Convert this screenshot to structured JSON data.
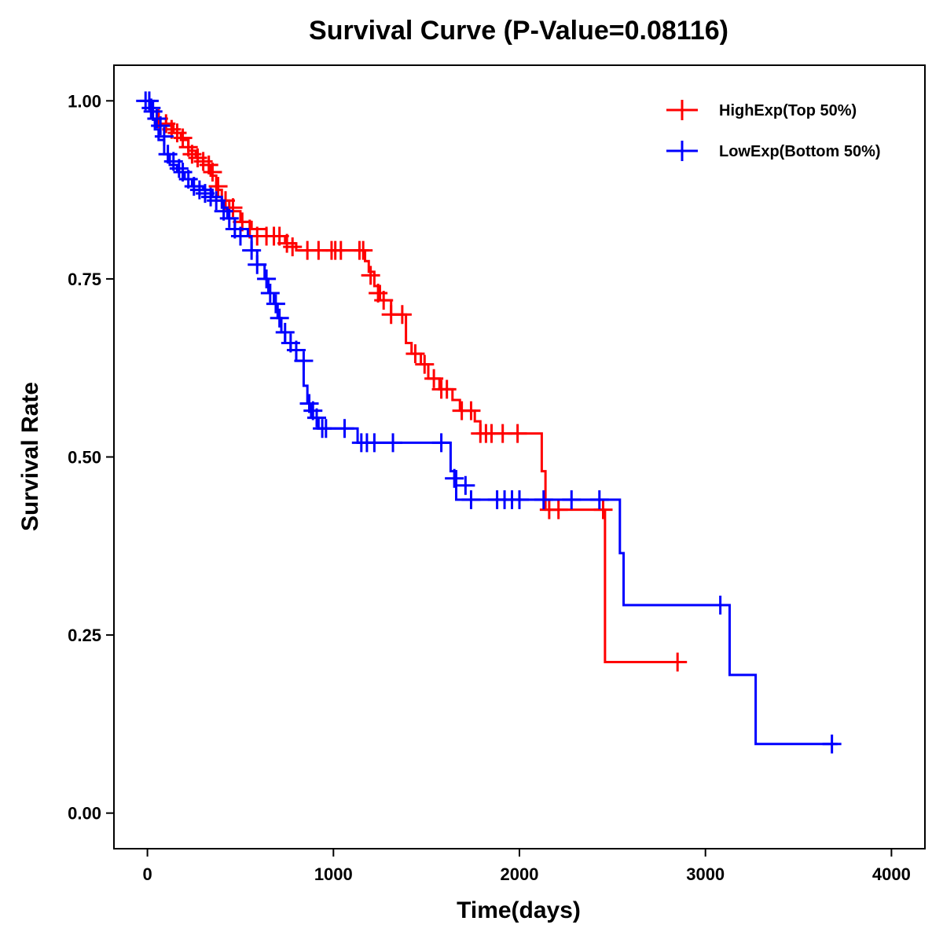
{
  "chart_data": {
    "type": "line",
    "subtype": "kaplan-meier",
    "title": "Survival Curve (P-Value=0.08116)",
    "xlabel": "Time(days)",
    "ylabel": "Survival Rate",
    "xlim": [
      -180,
      4180
    ],
    "ylim": [
      -0.05,
      1.05
    ],
    "xticks": [
      0,
      1000,
      2000,
      3000,
      4000
    ],
    "xtick_labels": [
      "0",
      "1000",
      "2000",
      "3000",
      "4000"
    ],
    "yticks": [
      0,
      0.25,
      0.5,
      0.75,
      1.0
    ],
    "ytick_labels": [
      "0.00",
      "0.25",
      "0.50",
      "0.75",
      "1.00"
    ],
    "grid": false,
    "legend_position": "top-right",
    "series": [
      {
        "name": "HighExp(Top 50%)",
        "color": "#ff0000",
        "steps": [
          [
            0,
            1.0
          ],
          [
            20,
            0.985
          ],
          [
            60,
            0.975
          ],
          [
            100,
            0.965
          ],
          [
            140,
            0.955
          ],
          [
            180,
            0.945
          ],
          [
            220,
            0.93
          ],
          [
            260,
            0.92
          ],
          [
            300,
            0.91
          ],
          [
            340,
            0.895
          ],
          [
            370,
            0.875
          ],
          [
            400,
            0.86
          ],
          [
            440,
            0.845
          ],
          [
            500,
            0.83
          ],
          [
            560,
            0.82
          ],
          [
            640,
            0.81
          ],
          [
            740,
            0.8
          ],
          [
            800,
            0.79
          ],
          [
            1170,
            0.775
          ],
          [
            1190,
            0.76
          ],
          [
            1220,
            0.74
          ],
          [
            1250,
            0.72
          ],
          [
            1310,
            0.7
          ],
          [
            1390,
            0.66
          ],
          [
            1420,
            0.645
          ],
          [
            1470,
            0.63
          ],
          [
            1510,
            0.61
          ],
          [
            1570,
            0.595
          ],
          [
            1640,
            0.58
          ],
          [
            1680,
            0.565
          ],
          [
            1760,
            0.55
          ],
          [
            1790,
            0.533
          ],
          [
            2120,
            0.48
          ],
          [
            2140,
            0.426
          ],
          [
            2460,
            0.212
          ],
          [
            2870,
            0.212
          ]
        ],
        "censored": [
          [
            60,
            0.975
          ],
          [
            100,
            0.968
          ],
          [
            130,
            0.96
          ],
          [
            160,
            0.955
          ],
          [
            190,
            0.948
          ],
          [
            220,
            0.935
          ],
          [
            240,
            0.925
          ],
          [
            270,
            0.92
          ],
          [
            300,
            0.915
          ],
          [
            330,
            0.91
          ],
          [
            350,
            0.9
          ],
          [
            380,
            0.88
          ],
          [
            420,
            0.86
          ],
          [
            460,
            0.85
          ],
          [
            510,
            0.83
          ],
          [
            550,
            0.82
          ],
          [
            590,
            0.81
          ],
          [
            640,
            0.81
          ],
          [
            680,
            0.81
          ],
          [
            710,
            0.81
          ],
          [
            750,
            0.8
          ],
          [
            780,
            0.795
          ],
          [
            860,
            0.79
          ],
          [
            920,
            0.79
          ],
          [
            990,
            0.79
          ],
          [
            1010,
            0.79
          ],
          [
            1040,
            0.79
          ],
          [
            1140,
            0.79
          ],
          [
            1160,
            0.79
          ],
          [
            1200,
            0.755
          ],
          [
            1240,
            0.73
          ],
          [
            1270,
            0.72
          ],
          [
            1310,
            0.7
          ],
          [
            1370,
            0.7
          ],
          [
            1440,
            0.645
          ],
          [
            1490,
            0.63
          ],
          [
            1540,
            0.61
          ],
          [
            1580,
            0.595
          ],
          [
            1610,
            0.595
          ],
          [
            1690,
            0.565
          ],
          [
            1740,
            0.565
          ],
          [
            1790,
            0.533
          ],
          [
            1820,
            0.533
          ],
          [
            1850,
            0.533
          ],
          [
            1910,
            0.533
          ],
          [
            1990,
            0.533
          ],
          [
            2160,
            0.426
          ],
          [
            2210,
            0.426
          ],
          [
            2450,
            0.426
          ],
          [
            2850,
            0.212
          ]
        ]
      },
      {
        "name": "LowExp(Bottom 50%)",
        "color": "#0000ff",
        "steps": [
          [
            0,
            1.0
          ],
          [
            10,
            0.99
          ],
          [
            20,
            0.975
          ],
          [
            40,
            0.96
          ],
          [
            60,
            0.945
          ],
          [
            90,
            0.925
          ],
          [
            120,
            0.91
          ],
          [
            160,
            0.9
          ],
          [
            200,
            0.89
          ],
          [
            240,
            0.88
          ],
          [
            300,
            0.875
          ],
          [
            350,
            0.865
          ],
          [
            400,
            0.85
          ],
          [
            430,
            0.835
          ],
          [
            470,
            0.82
          ],
          [
            540,
            0.81
          ],
          [
            560,
            0.79
          ],
          [
            590,
            0.77
          ],
          [
            630,
            0.75
          ],
          [
            650,
            0.73
          ],
          [
            680,
            0.715
          ],
          [
            700,
            0.695
          ],
          [
            720,
            0.675
          ],
          [
            740,
            0.66
          ],
          [
            770,
            0.65
          ],
          [
            800,
            0.635
          ],
          [
            840,
            0.6
          ],
          [
            860,
            0.575
          ],
          [
            880,
            0.555
          ],
          [
            920,
            0.54
          ],
          [
            1130,
            0.52
          ],
          [
            1630,
            0.48
          ],
          [
            1660,
            0.44
          ],
          [
            2540,
            0.365
          ],
          [
            2560,
            0.292
          ],
          [
            3130,
            0.194
          ],
          [
            3270,
            0.097
          ],
          [
            3710,
            0.097
          ]
        ],
        "censored": [
          [
            -10,
            1.0
          ],
          [
            10,
            1.0
          ],
          [
            20,
            0.99
          ],
          [
            30,
            0.985
          ],
          [
            50,
            0.975
          ],
          [
            70,
            0.965
          ],
          [
            90,
            0.95
          ],
          [
            110,
            0.925
          ],
          [
            140,
            0.915
          ],
          [
            170,
            0.905
          ],
          [
            190,
            0.9
          ],
          [
            220,
            0.89
          ],
          [
            250,
            0.88
          ],
          [
            280,
            0.875
          ],
          [
            310,
            0.87
          ],
          [
            340,
            0.865
          ],
          [
            370,
            0.86
          ],
          [
            410,
            0.845
          ],
          [
            440,
            0.835
          ],
          [
            470,
            0.82
          ],
          [
            500,
            0.81
          ],
          [
            560,
            0.79
          ],
          [
            590,
            0.77
          ],
          [
            640,
            0.75
          ],
          [
            660,
            0.73
          ],
          [
            690,
            0.715
          ],
          [
            710,
            0.695
          ],
          [
            740,
            0.675
          ],
          [
            770,
            0.66
          ],
          [
            800,
            0.65
          ],
          [
            840,
            0.635
          ],
          [
            870,
            0.575
          ],
          [
            890,
            0.565
          ],
          [
            910,
            0.555
          ],
          [
            940,
            0.54
          ],
          [
            960,
            0.54
          ],
          [
            1060,
            0.54
          ],
          [
            1150,
            0.52
          ],
          [
            1180,
            0.52
          ],
          [
            1220,
            0.52
          ],
          [
            1320,
            0.52
          ],
          [
            1580,
            0.52
          ],
          [
            1650,
            0.47
          ],
          [
            1710,
            0.46
          ],
          [
            1740,
            0.44
          ],
          [
            1880,
            0.44
          ],
          [
            1920,
            0.44
          ],
          [
            1960,
            0.44
          ],
          [
            2000,
            0.44
          ],
          [
            2130,
            0.44
          ],
          [
            2280,
            0.44
          ],
          [
            2430,
            0.44
          ],
          [
            3080,
            0.292
          ],
          [
            3680,
            0.097
          ]
        ]
      }
    ]
  }
}
